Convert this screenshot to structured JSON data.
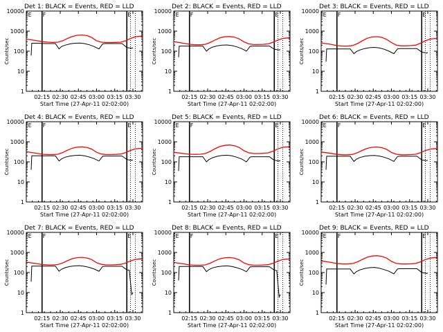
{
  "page": {
    "background": "#ffffff"
  },
  "colors": {
    "events": "#000000",
    "lld": "#ff0000",
    "axes": "#000000"
  },
  "chart_data": {
    "type": "line",
    "layout": "3x3 grid",
    "y_scale": "log",
    "ylim": [
      1,
      10000
    ],
    "y_ticks": [
      1,
      10,
      100,
      1000,
      10000
    ],
    "x_range_min": [
      0,
      96
    ],
    "x_ticks_min": [
      13,
      28,
      43,
      58,
      73,
      88
    ],
    "x_tick_labels": [
      "02:15",
      "02:30",
      "02:45",
      "03:00",
      "03:15",
      "03:30"
    ],
    "xlabel": "Start Time (27-Apr-11 02:02:00)",
    "ylabel": "Counts/sec",
    "flags": [
      "E",
      "F",
      "E"
    ],
    "panels": [
      {
        "title": "Det 1:  BLACK = Events, RED = LLD",
        "lld": {
          "x": [
            0,
            8,
            13,
            18,
            22,
            26,
            30,
            34,
            38,
            42,
            46,
            50,
            54,
            58,
            62,
            66,
            70,
            74,
            78,
            82,
            86,
            90,
            94,
            96
          ],
          "y": [
            400,
            340,
            300,
            280,
            275,
            280,
            330,
            430,
            540,
            620,
            640,
            600,
            480,
            330,
            280,
            270,
            270,
            275,
            280,
            330,
            430,
            520,
            560,
            540
          ]
        },
        "events": {
          "x": [
            4,
            4.5,
            6,
            8,
            10,
            12,
            16,
            20,
            24,
            27,
            29,
            32,
            36,
            40,
            44,
            48,
            52,
            56,
            60,
            63,
            65,
            68,
            72,
            76,
            79,
            81,
            83,
            85,
            87,
            88
          ],
          "y": [
            60,
            250,
            250,
            250,
            250,
            245,
            240,
            240,
            240,
            130,
            170,
            200,
            230,
            250,
            255,
            240,
            210,
            170,
            130,
            230,
            240,
            240,
            240,
            240,
            240,
            190,
            150,
            145,
            140,
            150
          ]
        }
      },
      {
        "title": "Det 2:  BLACK = Events, RED = LLD",
        "lld": {
          "x": [
            0,
            8,
            13,
            18,
            22,
            26,
            30,
            34,
            38,
            42,
            46,
            50,
            54,
            58,
            62,
            66,
            70,
            74,
            78,
            82,
            86,
            90,
            94,
            96
          ],
          "y": [
            300,
            250,
            220,
            210,
            210,
            220,
            270,
            360,
            460,
            520,
            540,
            500,
            410,
            290,
            230,
            215,
            215,
            220,
            230,
            280,
            360,
            430,
            460,
            440
          ]
        },
        "events": {
          "x": [
            4,
            4.5,
            6,
            8,
            10,
            12,
            16,
            20,
            24,
            27,
            29,
            32,
            36,
            40,
            44,
            48,
            52,
            56,
            60,
            63,
            65,
            68,
            72,
            76,
            79,
            81,
            83,
            85,
            87,
            88
          ],
          "y": [
            50,
            180,
            180,
            180,
            180,
            180,
            180,
            180,
            180,
            100,
            130,
            160,
            185,
            200,
            205,
            190,
            165,
            135,
            100,
            175,
            180,
            180,
            180,
            180,
            180,
            150,
            125,
            120,
            115,
            120
          ]
        }
      },
      {
        "title": "Det 3:  BLACK = Events, RED = LLD",
        "lld": {
          "x": [
            0,
            8,
            13,
            18,
            22,
            26,
            30,
            34,
            38,
            42,
            46,
            50,
            54,
            58,
            62,
            66,
            70,
            74,
            78,
            82,
            86,
            90,
            94,
            96
          ],
          "y": [
            260,
            220,
            190,
            180,
            180,
            190,
            240,
            330,
            440,
            510,
            530,
            490,
            390,
            270,
            200,
            185,
            185,
            190,
            200,
            250,
            330,
            400,
            430,
            420
          ]
        },
        "events": {
          "x": [
            4,
            4.5,
            6,
            8,
            10,
            12,
            16,
            20,
            24,
            27,
            29,
            32,
            36,
            40,
            44,
            48,
            52,
            56,
            60,
            63,
            65,
            68,
            72,
            76,
            79,
            81,
            83,
            85,
            87,
            88
          ],
          "y": [
            30,
            130,
            130,
            130,
            130,
            130,
            130,
            130,
            130,
            75,
            95,
            115,
            135,
            150,
            155,
            145,
            125,
            100,
            75,
            130,
            135,
            135,
            135,
            135,
            135,
            110,
            90,
            85,
            80,
            85
          ]
        }
      },
      {
        "title": "Det 4:  BLACK = Events, RED = LLD",
        "lld": {
          "x": [
            0,
            8,
            13,
            18,
            22,
            26,
            30,
            34,
            38,
            42,
            46,
            50,
            54,
            58,
            62,
            66,
            70,
            74,
            78,
            82,
            86,
            90,
            94,
            96
          ],
          "y": [
            320,
            270,
            240,
            230,
            230,
            240,
            290,
            380,
            480,
            540,
            560,
            520,
            430,
            300,
            245,
            230,
            230,
            235,
            245,
            290,
            370,
            440,
            470,
            450
          ]
        },
        "events": {
          "x": [
            4,
            4.5,
            6,
            8,
            10,
            12,
            16,
            20,
            24,
            27,
            29,
            32,
            36,
            40,
            44,
            48,
            52,
            56,
            60,
            63,
            65,
            68,
            72,
            76,
            79,
            81,
            83,
            85,
            87,
            88
          ],
          "y": [
            40,
            200,
            200,
            200,
            200,
            200,
            200,
            200,
            200,
            110,
            140,
            170,
            195,
            210,
            215,
            200,
            175,
            145,
            110,
            190,
            195,
            195,
            195,
            195,
            195,
            160,
            130,
            125,
            120,
            125
          ]
        }
      },
      {
        "title": "Det 5:  BLACK = Events, RED = LLD",
        "lld": {
          "x": [
            0,
            8,
            13,
            18,
            22,
            26,
            30,
            34,
            38,
            42,
            46,
            50,
            54,
            58,
            62,
            66,
            70,
            74,
            78,
            82,
            86,
            90,
            94,
            96
          ],
          "y": [
            300,
            260,
            240,
            235,
            240,
            260,
            330,
            450,
            580,
            660,
            690,
            640,
            520,
            360,
            280,
            260,
            260,
            265,
            280,
            340,
            440,
            530,
            560,
            540
          ]
        },
        "events": {
          "x": [
            4,
            4.5,
            6,
            8,
            10,
            12,
            16,
            20,
            24,
            27,
            29,
            32,
            36,
            40,
            44,
            48,
            52,
            56,
            60,
            63,
            65,
            68,
            72,
            76,
            79,
            81,
            83,
            85,
            87,
            88
          ],
          "y": [
            35,
            180,
            180,
            180,
            180,
            180,
            180,
            180,
            180,
            100,
            130,
            160,
            190,
            210,
            215,
            200,
            170,
            140,
            100,
            175,
            180,
            180,
            180,
            180,
            180,
            145,
            120,
            115,
            110,
            115
          ]
        }
      },
      {
        "title": "Det 6:  BLACK = Events, RED = LLD",
        "lld": {
          "x": [
            0,
            8,
            13,
            18,
            22,
            26,
            30,
            34,
            38,
            42,
            46,
            50,
            54,
            58,
            62,
            66,
            70,
            74,
            78,
            82,
            86,
            90,
            94,
            96
          ],
          "y": [
            310,
            265,
            235,
            225,
            225,
            235,
            285,
            375,
            470,
            530,
            550,
            510,
            420,
            295,
            240,
            225,
            225,
            230,
            240,
            285,
            365,
            430,
            460,
            440
          ]
        },
        "events": {
          "x": [
            4,
            4.5,
            6,
            8,
            10,
            12,
            16,
            20,
            24,
            27,
            29,
            32,
            36,
            40,
            44,
            48,
            52,
            56,
            60,
            63,
            65,
            68,
            72,
            76,
            79,
            81,
            83,
            85,
            87,
            88
          ],
          "y": [
            40,
            190,
            190,
            190,
            190,
            190,
            190,
            190,
            190,
            105,
            135,
            165,
            190,
            205,
            210,
            195,
            170,
            140,
            105,
            185,
            190,
            190,
            190,
            190,
            190,
            155,
            125,
            120,
            115,
            120
          ]
        }
      },
      {
        "title": "Det 7:  BLACK = Events, RED = LLD",
        "lld": {
          "x": [
            0,
            8,
            13,
            18,
            22,
            26,
            30,
            34,
            38,
            42,
            46,
            50,
            54,
            58,
            62,
            66,
            70,
            74,
            78,
            82,
            86,
            90,
            94,
            96
          ],
          "y": [
            330,
            280,
            250,
            240,
            240,
            250,
            300,
            390,
            490,
            550,
            570,
            530,
            440,
            310,
            255,
            240,
            240,
            245,
            255,
            300,
            380,
            450,
            480,
            460
          ]
        },
        "events": {
          "x": [
            4,
            4.5,
            6,
            8,
            10,
            12,
            16,
            20,
            24,
            27,
            29,
            32,
            36,
            40,
            44,
            48,
            52,
            56,
            60,
            63,
            65,
            68,
            72,
            76,
            79,
            81,
            83,
            85,
            87,
            88
          ],
          "y": [
            35,
            210,
            210,
            210,
            210,
            210,
            210,
            210,
            210,
            115,
            145,
            175,
            200,
            215,
            220,
            205,
            180,
            150,
            115,
            200,
            205,
            205,
            205,
            205,
            205,
            165,
            135,
            130,
            8,
            10
          ]
        }
      },
      {
        "title": "Det 8:  BLACK = Events, RED = LLD",
        "lld": {
          "x": [
            0,
            8,
            13,
            18,
            22,
            26,
            30,
            34,
            38,
            42,
            46,
            50,
            54,
            58,
            62,
            66,
            70,
            74,
            78,
            82,
            86,
            90,
            94,
            96
          ],
          "y": [
            320,
            270,
            240,
            230,
            230,
            240,
            290,
            380,
            480,
            540,
            560,
            520,
            430,
            300,
            245,
            230,
            230,
            235,
            245,
            290,
            370,
            440,
            470,
            450
          ]
        },
        "events": {
          "x": [
            4,
            4.5,
            6,
            8,
            10,
            12,
            16,
            20,
            24,
            27,
            29,
            32,
            36,
            40,
            44,
            48,
            52,
            56,
            60,
            63,
            65,
            68,
            72,
            76,
            79,
            81,
            83,
            85,
            87,
            88
          ],
          "y": [
            40,
            200,
            200,
            200,
            200,
            200,
            200,
            200,
            200,
            110,
            140,
            170,
            195,
            210,
            215,
            200,
            175,
            145,
            110,
            190,
            195,
            195,
            195,
            195,
            195,
            160,
            130,
            125,
            6,
            8
          ]
        }
      },
      {
        "title": "Det 9:  BLACK = Events, RED = LLD",
        "lld": {
          "x": [
            0,
            8,
            13,
            18,
            22,
            26,
            30,
            34,
            38,
            42,
            46,
            50,
            54,
            58,
            62,
            66,
            70,
            74,
            78,
            82,
            86,
            90,
            94,
            96
          ],
          "y": [
            380,
            320,
            280,
            265,
            265,
            280,
            340,
            450,
            580,
            660,
            690,
            640,
            520,
            360,
            285,
            265,
            265,
            270,
            285,
            340,
            440,
            520,
            560,
            540
          ]
        },
        "events": {
          "x": [
            4,
            4.5,
            6,
            8,
            10,
            12,
            16,
            20,
            24,
            27,
            29,
            32,
            36,
            40,
            44,
            48,
            52,
            56,
            60,
            63,
            65,
            68,
            72,
            76,
            79,
            81,
            83,
            85,
            87,
            88
          ],
          "y": [
            25,
            150,
            150,
            150,
            150,
            150,
            150,
            150,
            150,
            85,
            110,
            135,
            160,
            175,
            180,
            165,
            140,
            115,
            85,
            150,
            155,
            155,
            155,
            155,
            155,
            125,
            100,
            95,
            90,
            95
          ]
        }
      }
    ]
  }
}
